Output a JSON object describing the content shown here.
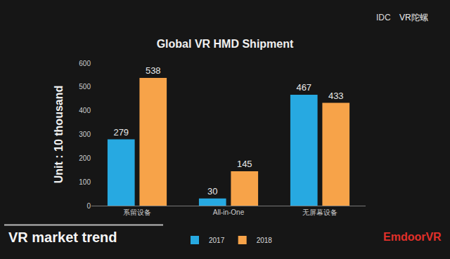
{
  "header": {
    "title": "VR market trend",
    "logo": "EmdoorVR"
  },
  "source": "IDC",
  "watermark": "VR陀螺",
  "chart_data": {
    "type": "bar",
    "title": "Global VR HMD Shipment",
    "y_label": "Unit : 10 thousand",
    "categories": [
      "系留设备",
      "All-in-One",
      "无屏幕设备"
    ],
    "series": [
      {
        "name": "2017",
        "color": "#27a9e1",
        "values": [
          279,
          30,
          467
        ]
      },
      {
        "name": "2018",
        "color": "#f7a349",
        "values": [
          538,
          145,
          433
        ]
      }
    ],
    "ylim": [
      0,
      600
    ],
    "yticks": [
      0,
      100,
      200,
      300,
      400,
      500,
      600
    ],
    "grid": false,
    "legend": "bottom",
    "data_labels": true
  }
}
